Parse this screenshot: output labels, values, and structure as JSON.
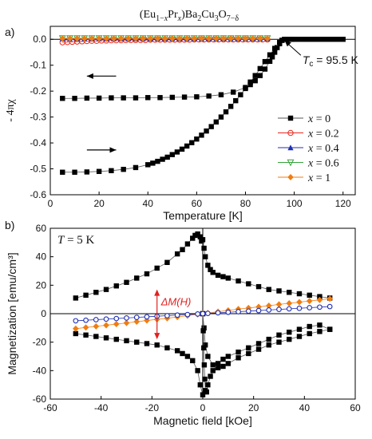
{
  "figure": {
    "title": "(Eu1−xPrx)Ba2Cu3O7−δ",
    "title_parts": {
      "a": "(Eu",
      "b": "1−",
      "c": "x",
      "d": "Pr",
      "e": "x",
      "f": ")Ba",
      "g": "2",
      "h": "Cu",
      "i": "3",
      "j": "O",
      "k": "7−δ"
    }
  },
  "chart_data": [
    {
      "panel": "a)",
      "type": "scatter",
      "xlabel": "Temperature [K]",
      "ylabel": "- 4πχ",
      "xlim": [
        0,
        125
      ],
      "ylim": [
        -0.6,
        0.05
      ],
      "xticks": [
        0,
        20,
        40,
        60,
        80,
        100,
        120
      ],
      "xtick_labels": [
        "0",
        "20",
        "40",
        "60",
        "80",
        "100",
        "120"
      ],
      "yticks": [
        0.0,
        -0.1,
        -0.2,
        -0.3,
        -0.4,
        -0.5,
        -0.6
      ],
      "ytick_labels": [
        "0.0",
        "-0.1",
        "-0.2",
        "-0.3",
        "-0.4",
        "-0.5",
        "-0.6"
      ],
      "annotation": {
        "prefix": "T",
        "sub": "c",
        "suffix": " = 95.5 K",
        "x": 95.5,
        "y": 0.0
      },
      "legend": {
        "placement": "lower-right",
        "entries": [
          {
            "prefix": "x",
            "label": " = 0",
            "color": "#000000",
            "marker": "square-filled"
          },
          {
            "prefix": "x",
            "label": " = 0.2",
            "color": "#e8281e",
            "marker": "circle-open"
          },
          {
            "prefix": "x",
            "label": " = 0.4",
            "color": "#1f2fb4",
            "marker": "triangle-filled"
          },
          {
            "prefix": "x",
            "label": " = 0.6",
            "color": "#37a23a",
            "marker": "triangle-down-open"
          },
          {
            "prefix": "x",
            "label": " = 1",
            "color": "#f07d10",
            "marker": "diamond-filled"
          }
        ]
      },
      "series": [
        {
          "name": "x = 0 (ZFC)",
          "color": "#000000",
          "marker": "square-filled",
          "x": [
            5,
            10,
            15,
            20,
            25,
            30,
            35,
            40,
            45,
            50,
            55,
            60,
            65,
            70,
            75,
            80,
            82,
            84,
            86,
            88,
            90,
            91,
            92,
            93,
            94,
            95
          ],
          "y": [
            -0.228,
            -0.228,
            -0.227,
            -0.227,
            -0.226,
            -0.226,
            -0.226,
            -0.225,
            -0.225,
            -0.224,
            -0.223,
            -0.222,
            -0.219,
            -0.214,
            -0.204,
            -0.186,
            -0.175,
            -0.16,
            -0.14,
            -0.115,
            -0.085,
            -0.068,
            -0.05,
            -0.032,
            -0.017,
            -0.004
          ]
        },
        {
          "name": "x = 0 (FC)",
          "color": "#000000",
          "marker": "square-filled",
          "x": [
            5,
            10,
            15,
            20,
            25,
            30,
            35,
            40,
            42,
            44,
            46,
            48,
            50,
            52,
            54,
            56,
            58,
            60,
            62,
            64,
            66,
            68,
            70,
            72,
            74,
            76,
            78,
            80,
            82,
            84,
            86,
            88,
            90,
            92,
            94,
            95,
            96,
            97,
            98,
            99,
            100,
            102,
            104,
            106,
            108,
            110,
            112,
            114,
            116,
            118,
            120
          ],
          "y": [
            -0.513,
            -0.513,
            -0.512,
            -0.51,
            -0.507,
            -0.502,
            -0.495,
            -0.484,
            -0.478,
            -0.471,
            -0.463,
            -0.455,
            -0.445,
            -0.435,
            -0.424,
            -0.412,
            -0.399,
            -0.385,
            -0.37,
            -0.354,
            -0.337,
            -0.319,
            -0.3,
            -0.28,
            -0.259,
            -0.237,
            -0.214,
            -0.19,
            -0.165,
            -0.14,
            -0.113,
            -0.086,
            -0.06,
            -0.035,
            -0.012,
            -0.004,
            0.0,
            0.0,
            0.0,
            0.0,
            0.0,
            0.0,
            0.0,
            0.0,
            0.0,
            0.0,
            0.0,
            0.0,
            0.0,
            0.0,
            0.0
          ]
        },
        {
          "name": "x = 0.2",
          "color": "#e8281e",
          "marker": "circle-open",
          "x": [
            5,
            7,
            9,
            11,
            13,
            15,
            17,
            19,
            21,
            23,
            25,
            27,
            29,
            31,
            33,
            35,
            37,
            39,
            41,
            43,
            45,
            47,
            49,
            51,
            53,
            55,
            57,
            59,
            61,
            63,
            65,
            67,
            69,
            71,
            73,
            75,
            77,
            79,
            81,
            83,
            85,
            87,
            89
          ],
          "y": [
            -0.012,
            -0.011,
            -0.01,
            -0.009,
            -0.008,
            -0.007,
            -0.006,
            -0.006,
            -0.005,
            -0.005,
            -0.004,
            -0.004,
            -0.004,
            -0.003,
            -0.003,
            -0.003,
            -0.003,
            -0.003,
            -0.002,
            -0.002,
            -0.002,
            -0.002,
            -0.002,
            -0.002,
            -0.002,
            -0.002,
            -0.002,
            -0.001,
            -0.001,
            -0.001,
            -0.001,
            -0.001,
            -0.001,
            -0.001,
            -0.001,
            -0.001,
            -0.001,
            -0.001,
            -0.001,
            -0.001,
            -0.001,
            -0.001,
            -0.001
          ]
        },
        {
          "name": "x = 0.4",
          "color": "#1f2fb4",
          "marker": "triangle-filled",
          "x": [
            5,
            8,
            11,
            14,
            17,
            20,
            23,
            26,
            29,
            32,
            35,
            38,
            41,
            44,
            47,
            50,
            53,
            56,
            59,
            62,
            65,
            68,
            71,
            74,
            77,
            80,
            83,
            86,
            89
          ],
          "y": [
            0.002,
            0.002,
            0.002,
            0.002,
            0.002,
            0.002,
            0.002,
            0.002,
            0.002,
            0.002,
            0.002,
            0.002,
            0.002,
            0.002,
            0.002,
            0.002,
            0.002,
            0.002,
            0.002,
            0.002,
            0.002,
            0.002,
            0.002,
            0.002,
            0.002,
            0.002,
            0.002,
            0.002,
            0.002
          ]
        },
        {
          "name": "x = 0.6",
          "color": "#37a23a",
          "marker": "triangle-down-open",
          "x": [
            5,
            8,
            11,
            14,
            17,
            20,
            23,
            26,
            29,
            32,
            35,
            38,
            41,
            44,
            47,
            50,
            53,
            56,
            59,
            62,
            65,
            68,
            71,
            74,
            77,
            80,
            83,
            86,
            89
          ],
          "y": [
            0.004,
            0.004,
            0.004,
            0.004,
            0.004,
            0.004,
            0.004,
            0.004,
            0.004,
            0.004,
            0.004,
            0.004,
            0.004,
            0.004,
            0.004,
            0.004,
            0.004,
            0.004,
            0.004,
            0.004,
            0.004,
            0.004,
            0.004,
            0.004,
            0.004,
            0.004,
            0.004,
            0.004,
            0.004
          ]
        },
        {
          "name": "x = 1",
          "color": "#f07d10",
          "marker": "diamond-filled",
          "x": [
            5,
            8,
            11,
            14,
            17,
            20,
            23,
            26,
            29,
            32,
            35,
            38,
            41,
            44,
            47,
            50,
            53,
            56,
            59,
            62,
            65,
            68,
            71,
            74,
            77,
            80,
            83,
            86,
            89
          ],
          "y": [
            0.003,
            0.003,
            0.003,
            0.003,
            0.003,
            0.003,
            0.003,
            0.003,
            0.003,
            0.003,
            0.003,
            0.003,
            0.003,
            0.003,
            0.003,
            0.003,
            0.003,
            0.003,
            0.003,
            0.003,
            0.003,
            0.003,
            0.003,
            0.003,
            0.003,
            0.003,
            0.003,
            0.003,
            0.003
          ]
        }
      ]
    },
    {
      "panel": "b)",
      "type": "scatter",
      "xlabel": "Magnetic field [kOe]",
      "ylabel": "Magnetization [emu/cm³]",
      "xlim": [
        -60,
        60
      ],
      "ylim": [
        -60,
        60
      ],
      "xticks": [
        -60,
        -40,
        -20,
        0,
        20,
        40,
        60
      ],
      "xtick_labels": [
        "-60",
        "-40",
        "-20",
        "0",
        "20",
        "40",
        "60"
      ],
      "yticks": [
        60,
        40,
        20,
        0,
        -20,
        -40,
        -60
      ],
      "ytick_labels": [
        "60",
        "40",
        "20",
        "0",
        "-20",
        "-40",
        "-60"
      ],
      "temperature_label": {
        "prefix": "T",
        "suffix": " = 5 K"
      },
      "annotation": {
        "label": "ΔM(H)",
        "x": -18,
        "y_top": 17,
        "y_bottom": -18
      },
      "series": [
        {
          "name": "x = 0 upper branch",
          "color": "#000000",
          "marker": "square-filled",
          "x": [
            -50,
            -46,
            -42,
            -38,
            -34,
            -30,
            -26,
            -22,
            -18,
            -14,
            -10,
            -8,
            -6,
            -4,
            -3,
            -2,
            -1,
            -0.5
          ],
          "y": [
            11,
            13,
            15,
            17,
            19.5,
            22,
            25,
            28,
            32,
            36,
            42,
            45,
            49,
            53,
            55,
            56,
            54,
            51
          ]
        },
        {
          "name": "x = 0 decreasing from +50",
          "color": "#000000",
          "marker": "square-filled",
          "x": [
            50,
            46,
            42,
            38,
            34,
            30,
            26,
            22,
            18,
            14,
            10,
            8,
            6,
            4,
            2,
            1,
            0.5,
            0
          ],
          "y": [
            -11,
            -12.5,
            -14,
            -16,
            -18,
            -20,
            -22,
            -25,
            -28,
            -31,
            -35,
            -37,
            -38,
            -36,
            -30,
            -22,
            -10,
            0
          ]
        },
        {
          "name": "x = 0 virgin and return",
          "color": "#000000",
          "marker": "square-filled",
          "x": [
            0,
            0.2,
            0.4,
            0.6,
            0.8,
            1,
            1.5,
            2,
            3,
            4,
            6,
            8,
            10,
            14,
            18,
            22,
            26,
            30,
            34,
            38,
            42,
            46,
            50
          ],
          "y": [
            0,
            -12,
            -24,
            -36,
            -46,
            -54,
            -55,
            -50,
            -44,
            -40,
            -35,
            -32,
            -30,
            -27,
            -24,
            -21,
            -18,
            -15,
            -13,
            -11,
            -9,
            -8,
            -11
          ]
        },
        {
          "name": "x = 0 increasing from -50",
          "color": "#000000",
          "marker": "square-filled",
          "x": [
            -50,
            -46,
            -42,
            -38,
            -34,
            -30,
            -26,
            -22,
            -18,
            -14,
            -10,
            -8,
            -6,
            -4,
            -2,
            -1,
            0
          ],
          "y": [
            -14,
            -15,
            -16,
            -17,
            -18,
            -19,
            -20,
            -21,
            -22,
            -24,
            -26,
            -28,
            -30,
            -33,
            -40,
            -50,
            -57
          ]
        },
        {
          "name": "x = 0 upper right branch",
          "color": "#000000",
          "marker": "square-filled",
          "x": [
            0,
            0.5,
            1,
            2,
            3,
            4,
            6,
            8,
            10,
            14,
            18,
            22,
            26,
            30,
            34,
            38,
            42,
            46,
            50
          ],
          "y": [
            52,
            46,
            40,
            34,
            31,
            29,
            27,
            26,
            25,
            23,
            21,
            19,
            17,
            16,
            15,
            14,
            13,
            12,
            11
          ]
        },
        {
          "name": "x = 1",
          "color": "#f07d10",
          "marker": "diamond-filled",
          "x": [
            -50,
            -46,
            -42,
            -38,
            -34,
            -30,
            -26,
            -22,
            -18,
            -14,
            -10,
            -6,
            -2,
            0,
            2,
            6,
            10,
            14,
            18,
            22,
            26,
            30,
            34,
            38,
            42,
            46,
            50
          ],
          "y": [
            -10.5,
            -9.7,
            -8.9,
            -8.1,
            -7.3,
            -6.5,
            -5.6,
            -4.8,
            -4.0,
            -3.2,
            -2.3,
            -1.4,
            -0.5,
            0,
            0.5,
            1.4,
            2.3,
            3.2,
            4.0,
            4.8,
            5.6,
            6.5,
            7.3,
            8.1,
            8.9,
            9.7,
            10.5
          ]
        },
        {
          "name": "x = 0.2",
          "color": "#1f2fb4",
          "marker": "circle-open-dark",
          "x": [
            -50,
            -46,
            -42,
            -38,
            -34,
            -30,
            -26,
            -22,
            -18,
            -14,
            -10,
            -6,
            -2,
            0,
            2,
            6,
            10,
            14,
            18,
            22,
            26,
            30,
            34,
            38,
            42,
            46,
            50
          ],
          "y": [
            -5,
            -4.6,
            -4.2,
            -3.8,
            -3.4,
            -3,
            -2.6,
            -2.2,
            -1.8,
            -1.4,
            -1,
            -0.6,
            -0.2,
            0,
            0.2,
            0.6,
            1,
            1.4,
            1.8,
            2.2,
            2.6,
            3,
            3.4,
            3.8,
            4.2,
            4.6,
            5
          ]
        }
      ]
    }
  ]
}
